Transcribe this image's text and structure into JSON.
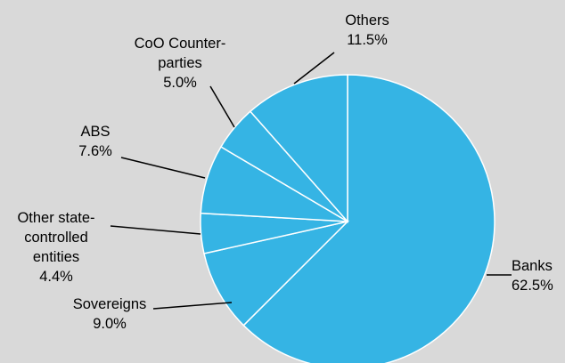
{
  "chart_data": {
    "type": "pie",
    "title": "",
    "legend": "none",
    "start": "12 o'clock",
    "direction": "clockwise",
    "colors": {
      "slice": "#35b4e4",
      "separator": "#ffffff",
      "background": "#d9d9d9",
      "text": "#000000"
    },
    "slices": [
      {
        "label": [
          "Banks"
        ],
        "value": 62.5,
        "value_text": "62.5%"
      },
      {
        "label": [
          "Sovereigns"
        ],
        "value": 9.0,
        "value_text": "9.0%"
      },
      {
        "label": [
          "Other state-",
          "controlled",
          "entities"
        ],
        "value": 4.4,
        "value_text": "4.4%"
      },
      {
        "label": [
          "ABS"
        ],
        "value": 7.6,
        "value_text": "7.6%"
      },
      {
        "label": [
          "CoO Counter-",
          "parties"
        ],
        "value": 5.0,
        "value_text": "5.0%"
      },
      {
        "label": [
          "Others"
        ],
        "value": 11.5,
        "value_text": "11.5%"
      }
    ]
  }
}
